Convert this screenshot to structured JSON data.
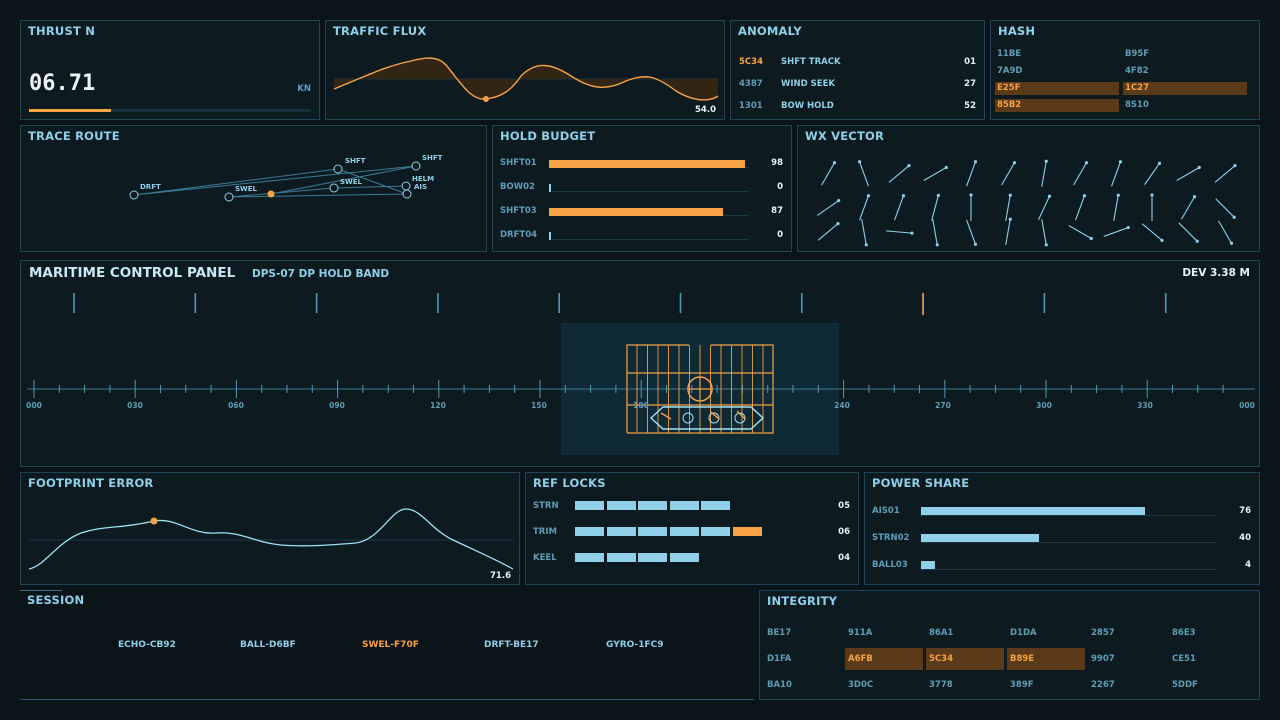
{
  "thrust": {
    "title": "THRUST N",
    "value": "06.71",
    "unit": "KN",
    "progress": 0.29
  },
  "traffic": {
    "title": "TRAFFIC FLUX",
    "value": "54.0"
  },
  "anomaly": {
    "title": "ANOMALY",
    "rows": [
      {
        "code": "5C34",
        "label": "SHFT TRACK",
        "value": "01",
        "highlight": true
      },
      {
        "code": "4387",
        "label": "WIND SEEK",
        "value": "27",
        "highlight": false
      },
      {
        "code": "1301",
        "label": "BOW HOLD",
        "value": "52",
        "highlight": false
      }
    ]
  },
  "hash": {
    "title": "HASH",
    "cells": [
      {
        "text": "11BE",
        "hl": false
      },
      {
        "text": "B95F",
        "hl": false
      },
      {
        "text": "7A9D",
        "hl": false
      },
      {
        "text": "4F82",
        "hl": false
      },
      {
        "text": "E25F",
        "hl": true
      },
      {
        "text": "1C27",
        "hl": true
      },
      {
        "text": "85B2",
        "hl": true
      },
      {
        "text": "8S10",
        "hl": false
      }
    ]
  },
  "trace": {
    "title": "TRACE ROUTE",
    "labels": [
      "DRFT",
      "SWEL",
      "SHFT",
      "SWEL",
      "SHFT",
      "HELM",
      "AIS"
    ]
  },
  "hold_budget": {
    "title": "HOLD BUDGET",
    "rows": [
      {
        "label": "SHFT01",
        "value": "98",
        "pct": 0.98
      },
      {
        "label": "BOW02",
        "value": "0",
        "pct": 0.0
      },
      {
        "label": "SHFT03",
        "value": "87",
        "pct": 0.87
      },
      {
        "label": "DRFT04",
        "value": "0",
        "pct": 0.0
      }
    ]
  },
  "wx": {
    "title": "WX VECTOR"
  },
  "main": {
    "title": "MARITIME CONTROL PANEL",
    "subtitle": "DPS-07 DP HOLD BAND",
    "dev": "DEV 3.38 M",
    "scale": [
      "000",
      "030",
      "060",
      "090",
      "120",
      "150",
      "180",
      "240",
      "270",
      "300",
      "330",
      "000"
    ]
  },
  "footprint": {
    "title": "FOOTPRINT ERROR",
    "value": "71.6"
  },
  "ref_locks": {
    "title": "REF LOCKS",
    "rows": [
      {
        "label": "STRN",
        "value": "05",
        "segments": 5,
        "orange": 0
      },
      {
        "label": "TRIM",
        "value": "06",
        "segments": 6,
        "orange": 1
      },
      {
        "label": "KEEL",
        "value": "04",
        "segments": 4,
        "orange": 0
      }
    ]
  },
  "power": {
    "title": "POWER SHARE",
    "rows": [
      {
        "label": "AIS01",
        "value": "76",
        "pct": 0.76
      },
      {
        "label": "STRN02",
        "value": "40",
        "pct": 0.4
      },
      {
        "label": "BALL03",
        "value": "4",
        "pct": 0.04
      }
    ]
  },
  "session": {
    "title": "SESSION",
    "items": [
      {
        "text": "ECHO-CB92",
        "active": false
      },
      {
        "text": "BALL-D6BF",
        "active": false
      },
      {
        "text": "SWEL-F70F",
        "active": true
      },
      {
        "text": "DRFT-BE17",
        "active": false
      },
      {
        "text": "GYRO-1FC9",
        "active": false
      }
    ]
  },
  "integrity": {
    "title": "INTEGRITY",
    "cells": [
      {
        "text": "BE17",
        "hl": false
      },
      {
        "text": "911A",
        "hl": false
      },
      {
        "text": "86A1",
        "hl": false
      },
      {
        "text": "D1DA",
        "hl": false
      },
      {
        "text": "2857",
        "hl": false
      },
      {
        "text": "86E3",
        "hl": false
      },
      {
        "text": "D1FA",
        "hl": false
      },
      {
        "text": "A6FB",
        "hl": true
      },
      {
        "text": "5C34",
        "hl": true
      },
      {
        "text": "B89E",
        "hl": true
      },
      {
        "text": "9907",
        "hl": false
      },
      {
        "text": "CE51",
        "hl": false
      },
      {
        "text": "BA10",
        "hl": false
      },
      {
        "text": "3D0C",
        "hl": false
      },
      {
        "text": "3778",
        "hl": false
      },
      {
        "text": "389F",
        "hl": false
      },
      {
        "text": "2267",
        "hl": false
      },
      {
        "text": "5DDF",
        "hl": false
      }
    ]
  },
  "colors": {
    "accent": "#f7a245",
    "cyan": "#8fd0e8",
    "panel": "#0d1b21",
    "border": "#1f4453"
  }
}
